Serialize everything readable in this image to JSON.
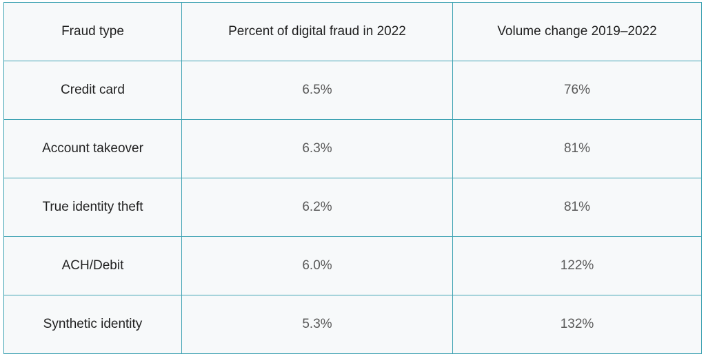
{
  "table": {
    "headers": [
      "Fraud type",
      "Percent of digital fraud in 2022",
      "Volume change 2019–2022"
    ],
    "rows": [
      {
        "type": "Credit card",
        "percent": "6.5%",
        "change": "76%"
      },
      {
        "type": "Account takeover",
        "percent": "6.3%",
        "change": "81%"
      },
      {
        "type": "True identity theft",
        "percent": "6.2%",
        "change": "81%"
      },
      {
        "type": "ACH/Debit",
        "percent": "6.0%",
        "change": "122%"
      },
      {
        "type": "Synthetic identity",
        "percent": "5.3%",
        "change": "132%"
      }
    ]
  },
  "colors": {
    "border": "#3fa3b3",
    "background": "#f7f9fa",
    "text_dark": "#1f1f1f",
    "text_muted": "#5a5a5a"
  }
}
